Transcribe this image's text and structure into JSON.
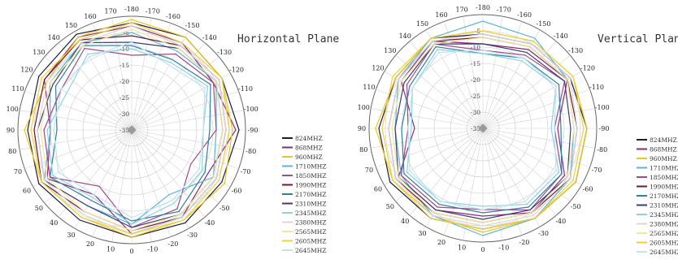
{
  "chart_data": [
    {
      "type": "polar",
      "title": "Horizontal Plane",
      "angle_ticks": [
        0,
        10,
        20,
        30,
        40,
        50,
        60,
        70,
        80,
        90,
        100,
        110,
        120,
        130,
        140,
        150,
        160,
        170,
        -180,
        -170,
        -160,
        -150,
        -140,
        -130,
        -120,
        -110,
        -100,
        -90,
        -80,
        -70,
        -60,
        -50,
        -40,
        -30,
        -20,
        -10
      ],
      "radial_ticks": [
        -35,
        -30,
        -25,
        -20,
        -15,
        -10,
        -5
      ],
      "rlim": [
        -35,
        0
      ],
      "grid": true,
      "legend_position": "right",
      "angles": [
        0,
        30,
        60,
        90,
        120,
        150,
        180,
        210,
        240,
        270,
        300,
        330
      ],
      "series": [
        {
          "name": "824MHZ",
          "color": "#1c1c3c",
          "values": [
            -2,
            -3,
            -2,
            -3,
            -2,
            -1,
            -2,
            -2,
            -3,
            -2,
            -3,
            -2
          ]
        },
        {
          "name": "868MHZ",
          "color": "#8b2a7a",
          "values": [
            -3,
            -12,
            -5,
            -10,
            -4,
            -2,
            -3,
            -4,
            -6,
            -3,
            -8,
            -4
          ]
        },
        {
          "name": "960MHZ",
          "color": "#e8c620",
          "values": [
            -2,
            -4,
            -3,
            -2,
            -5,
            -2,
            -1,
            -2,
            -3,
            -4,
            -2,
            -3
          ]
        },
        {
          "name": "1710MHZ",
          "color": "#5ab4d6",
          "values": [
            -6,
            -8,
            -4,
            -10,
            -6,
            -4,
            -5,
            -7,
            -5,
            -9,
            -6,
            -12
          ]
        },
        {
          "name": "1850MHZ",
          "color": "#a04a86",
          "values": [
            -5,
            -15,
            -6,
            -8,
            -10,
            -6,
            -12,
            -8,
            -6,
            -9,
            -14,
            -7
          ]
        },
        {
          "name": "1990MHZ",
          "color": "#6b1a3a",
          "values": [
            -4,
            -6,
            -3,
            -5,
            -4,
            -3,
            -6,
            -5,
            -4,
            -6,
            -5,
            -4
          ]
        },
        {
          "name": "2170MHZ",
          "color": "#2f7fa0",
          "values": [
            -7,
            -10,
            -6,
            -12,
            -8,
            -5,
            -9,
            -10,
            -7,
            -11,
            -9,
            -6
          ]
        },
        {
          "name": "2310MHZ",
          "color": "#3c3c78",
          "values": [
            -5,
            -8,
            -4,
            -6,
            -7,
            -4,
            -8,
            -6,
            -5,
            -7,
            -6,
            -5
          ]
        },
        {
          "name": "2345MHZ",
          "color": "#8fd0e6",
          "values": [
            -6,
            -11,
            -7,
            -9,
            -12,
            -8,
            -10,
            -11,
            -8,
            -13,
            -10,
            -9
          ]
        },
        {
          "name": "2380MHZ",
          "color": "#d8d8d8",
          "values": [
            -3,
            -5,
            -4,
            -6,
            -5,
            -4,
            -3,
            -5,
            -4,
            -6,
            -5,
            -4
          ]
        },
        {
          "name": "2565MHZ",
          "color": "#f2e79a",
          "values": [
            -4,
            -6,
            -5,
            -7,
            -6,
            -5,
            -4,
            -6,
            -5,
            -7,
            -6,
            -5
          ]
        },
        {
          "name": "2605MHZ",
          "color": "#f0d03a",
          "values": [
            -3,
            -4,
            -3,
            -4,
            -3,
            -3,
            -2,
            -4,
            -3,
            -5,
            -4,
            -3
          ]
        },
        {
          "name": "2645MHZ",
          "color": "#bfe3f0",
          "values": [
            -8,
            -12,
            -9,
            -11,
            -10,
            -9,
            -8,
            -12,
            -9,
            -13,
            -11,
            -10
          ]
        }
      ]
    },
    {
      "type": "polar",
      "title": "Vertical Plane",
      "angle_ticks": [
        0,
        10,
        20,
        30,
        40,
        50,
        60,
        70,
        80,
        90,
        100,
        110,
        120,
        130,
        140,
        150,
        160,
        170,
        -180,
        -170,
        -160,
        -150,
        -140,
        -130,
        -120,
        -110,
        -100,
        -90,
        -80,
        -70,
        -60,
        -50,
        -40,
        -30,
        -20,
        -10
      ],
      "radial_ticks": [
        -35,
        -30,
        -25,
        -20,
        -15,
        -10,
        -5
      ],
      "rlim": [
        -35,
        0
      ],
      "grid": true,
      "legend_position": "right",
      "angles": [
        0,
        30,
        60,
        90,
        120,
        150,
        180,
        210,
        240,
        270,
        300,
        330
      ],
      "series": [
        {
          "name": "824MHZ",
          "color": "#1c1c3c",
          "values": [
            -4,
            -3,
            -2,
            -3,
            -4,
            -3,
            -6,
            -5,
            -4,
            -3,
            -2,
            -3
          ]
        },
        {
          "name": "868MHZ",
          "color": "#8b2a7a",
          "values": [
            -8,
            -6,
            -5,
            -14,
            -6,
            -4,
            -9,
            -7,
            -5,
            -12,
            -6,
            -5
          ]
        },
        {
          "name": "960MHZ",
          "color": "#e8c620",
          "values": [
            -3,
            -4,
            -3,
            -2,
            -4,
            -3,
            -5,
            -4,
            -3,
            -3,
            -2,
            -3
          ]
        },
        {
          "name": "1710MHZ",
          "color": "#5ab4d6",
          "values": [
            -2,
            -4,
            -6,
            -8,
            -5,
            -3,
            -2,
            -3,
            -5,
            -7,
            -4,
            -3
          ]
        },
        {
          "name": "1850MHZ",
          "color": "#a04a86",
          "values": [
            -10,
            -7,
            -6,
            -12,
            -8,
            -5,
            -11,
            -9,
            -6,
            -13,
            -7,
            -6
          ]
        },
        {
          "name": "1990MHZ",
          "color": "#6b1a3a",
          "values": [
            -6,
            -5,
            -4,
            -6,
            -5,
            -4,
            -7,
            -6,
            -5,
            -6,
            -4,
            -5
          ]
        },
        {
          "name": "2170MHZ",
          "color": "#2f7fa0",
          "values": [
            -9,
            -8,
            -7,
            -10,
            -9,
            -6,
            -12,
            -10,
            -8,
            -11,
            -7,
            -7
          ]
        },
        {
          "name": "2310MHZ",
          "color": "#3c3c78",
          "values": [
            -7,
            -6,
            -5,
            -8,
            -7,
            -5,
            -9,
            -8,
            -6,
            -8,
            -5,
            -6
          ]
        },
        {
          "name": "2345MHZ",
          "color": "#8fd0e6",
          "values": [
            -11,
            -9,
            -8,
            -13,
            -10,
            -7,
            -12,
            -11,
            -9,
            -14,
            -8,
            -8
          ]
        },
        {
          "name": "2380MHZ",
          "color": "#d8d8d8",
          "values": [
            -5,
            -4,
            -4,
            -6,
            -5,
            -4,
            -6,
            -5,
            -4,
            -6,
            -4,
            -4
          ]
        },
        {
          "name": "2565MHZ",
          "color": "#f2e79a",
          "values": [
            -6,
            -5,
            -5,
            -7,
            -6,
            -5,
            -7,
            -6,
            -5,
            -7,
            -5,
            -5
          ]
        },
        {
          "name": "2605MHZ",
          "color": "#f0d03a",
          "values": [
            -4,
            -3,
            -3,
            -4,
            -3,
            -3,
            -5,
            -4,
            -3,
            -4,
            -3,
            -3
          ]
        },
        {
          "name": "2645MHZ",
          "color": "#bfe3f0",
          "values": [
            -10,
            -9,
            -9,
            -12,
            -10,
            -8,
            -11,
            -10,
            -9,
            -13,
            -9,
            -9
          ]
        }
      ]
    }
  ]
}
